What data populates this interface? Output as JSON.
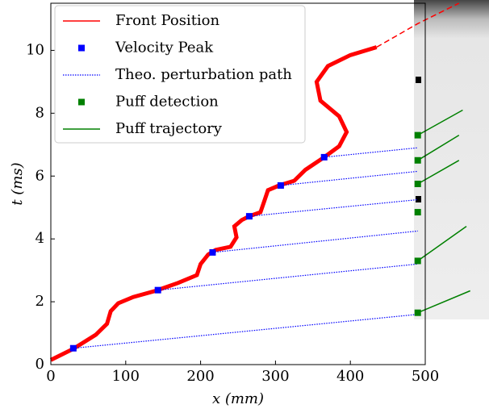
{
  "chart_data": {
    "type": "line",
    "xlabel": "x (mm)",
    "ylabel": "t (ms)",
    "xlim": [
      0,
      500
    ],
    "ylim": [
      0,
      11.5
    ],
    "xticks": [
      0,
      100,
      200,
      300,
      400,
      500
    ],
    "yticks": [
      0,
      2,
      4,
      6,
      8,
      10
    ],
    "legend": "upper left",
    "series": [
      {
        "name": "Front Position",
        "color": "#ff0000",
        "kind": "line",
        "x": [
          0,
          30,
          60,
          75,
          80,
          90,
          110,
          140,
          170,
          195,
          200,
          210,
          220,
          240,
          248,
          245,
          255,
          265,
          280,
          285,
          290,
          305,
          325,
          340,
          365,
          385,
          395,
          385,
          360,
          355,
          370,
          400,
          435
        ],
        "values": [
          0.15,
          0.5,
          0.95,
          1.3,
          1.7,
          1.95,
          2.15,
          2.35,
          2.6,
          2.85,
          3.2,
          3.5,
          3.65,
          3.75,
          4.05,
          4.4,
          4.6,
          4.72,
          4.85,
          5.2,
          5.55,
          5.7,
          5.85,
          6.2,
          6.6,
          6.95,
          7.4,
          7.9,
          8.4,
          9.0,
          9.5,
          9.85,
          10.1
        ]
      },
      {
        "color": "#ff0000",
        "kind": "dashed",
        "x": [
          435,
          490,
          545
        ],
        "values": [
          10.1,
          10.85,
          11.5
        ]
      },
      {
        "name": "Velocity Peak",
        "color": "#0000ff",
        "kind": "square",
        "x": [
          30,
          143,
          216,
          265,
          307,
          365
        ],
        "values": [
          0.52,
          2.37,
          3.57,
          4.72,
          5.7,
          6.6
        ]
      },
      {
        "name": "Theo. perturbation path",
        "color": "#0000ff",
        "kind": "dotted",
        "x": [
          30,
          490,
          null,
          143,
          490,
          null,
          216,
          490,
          null,
          265,
          490,
          null,
          307,
          490,
          null,
          365,
          490
        ],
        "values": [
          0.52,
          1.6,
          null,
          2.37,
          3.2,
          null,
          3.57,
          4.25,
          null,
          4.72,
          5.25,
          null,
          5.7,
          6.15,
          null,
          6.6,
          6.9
        ]
      },
      {
        "name": "Puff detection",
        "color": "#008000",
        "kind": "square",
        "x": [
          490,
          490,
          490,
          490,
          490,
          490
        ],
        "values": [
          1.65,
          3.3,
          4.85,
          5.75,
          6.5,
          7.3
        ]
      },
      {
        "name": "Puff trajectory",
        "color": "#008000",
        "kind": "line",
        "x": [
          490,
          560,
          null,
          490,
          555,
          null,
          490,
          545,
          null,
          490,
          545,
          null,
          490,
          550
        ],
        "values": [
          1.65,
          2.35,
          null,
          3.3,
          4.4,
          null,
          5.75,
          6.5,
          null,
          6.5,
          7.3,
          null,
          7.3,
          8.1
        ]
      }
    ]
  }
}
